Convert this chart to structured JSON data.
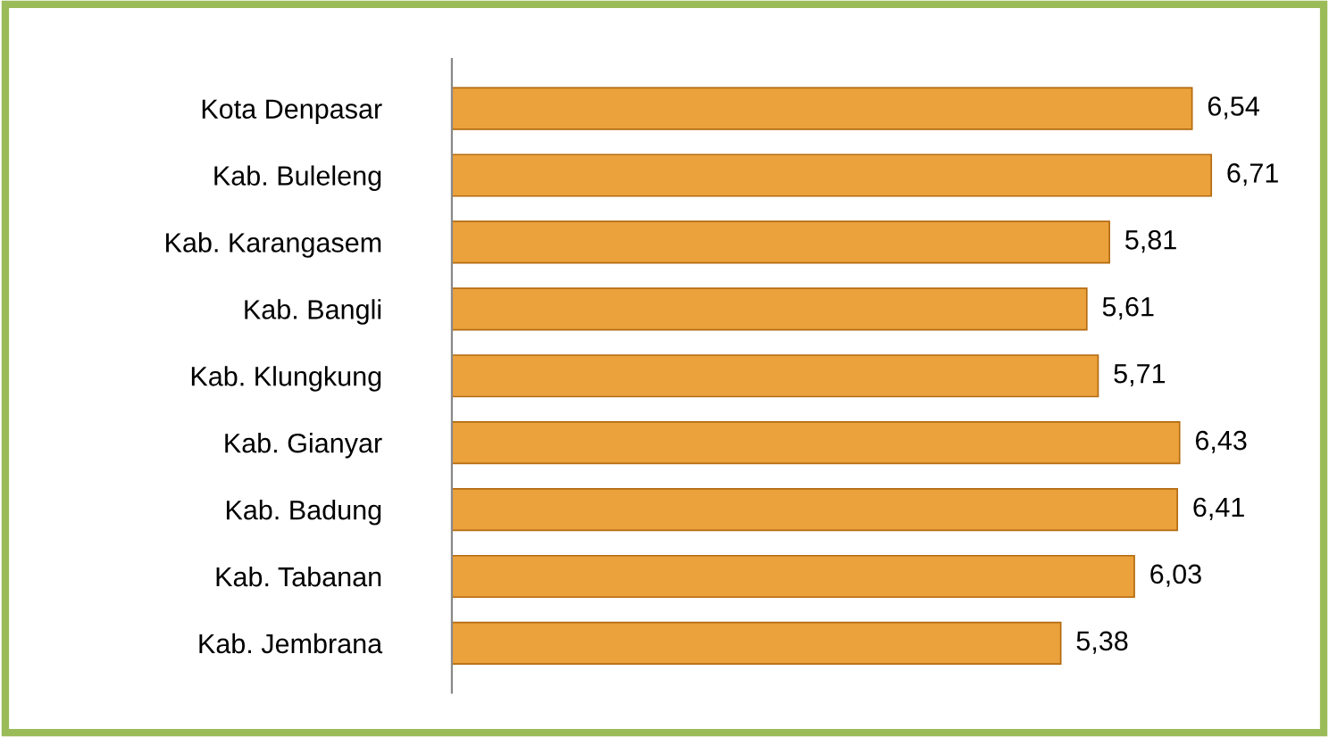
{
  "chart_data": {
    "type": "bar",
    "orientation": "horizontal",
    "categories": [
      "Kota Denpasar",
      "Kab. Buleleng",
      "Kab. Karangasem",
      "Kab. Bangli",
      "Kab. Klungkung",
      "Kab. Gianyar",
      "Kab. Badung",
      "Kab. Tabanan",
      "Kab. Jembrana"
    ],
    "values": [
      6.54,
      6.71,
      5.81,
      5.61,
      5.71,
      6.43,
      6.41,
      6.03,
      5.38
    ],
    "value_labels": [
      "6,54",
      "6,71",
      "5,81",
      "5,61",
      "5,71",
      "6,43",
      "6,41",
      "6,03",
      "5,38"
    ],
    "color": "#eba13c",
    "grid": false,
    "legend": false
  }
}
